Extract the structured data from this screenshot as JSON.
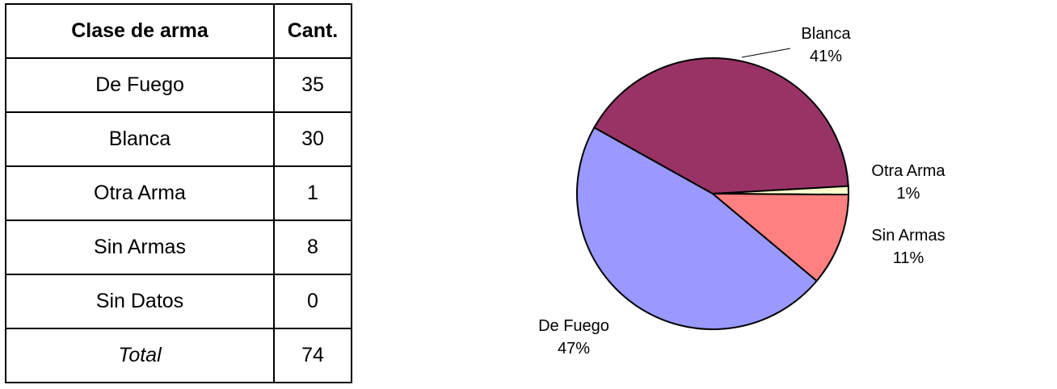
{
  "table": {
    "header": [
      "Clase de arma",
      "Cant."
    ],
    "rows": [
      [
        "De Fuego",
        "35"
      ],
      [
        "Blanca",
        "30"
      ],
      [
        "Otra Arma",
        "1"
      ],
      [
        "Sin Armas",
        "8"
      ],
      [
        "Sin Datos",
        "0"
      ],
      [
        "Total",
        "74"
      ]
    ]
  },
  "chart_data": {
    "type": "pie",
    "categories": [
      "De Fuego",
      "Blanca",
      "Otra Arma",
      "Sin Armas"
    ],
    "values": [
      47,
      41,
      1,
      11
    ],
    "value_labels": [
      "47%",
      "41%",
      "1%",
      "11%"
    ],
    "colors": [
      "#9999ff",
      "#993366",
      "#ffffcc",
      "#ff8080"
    ]
  }
}
